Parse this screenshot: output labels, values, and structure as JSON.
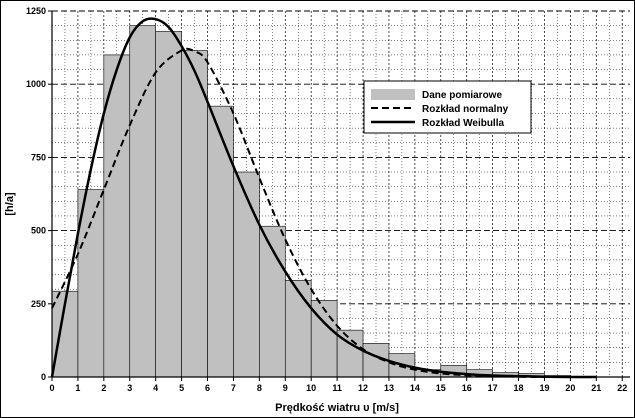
{
  "chart_data": {
    "type": "bar",
    "title": "",
    "xlabel": "Prędkość wiatru υ [m/s]",
    "ylabel": "[h/a]",
    "xlim": [
      0,
      22.3
    ],
    "ylim": [
      0,
      1250
    ],
    "x_ticks": [
      "0",
      "1",
      "2",
      "3",
      "4",
      "5",
      "6",
      "7",
      "8",
      "9",
      "10",
      "11",
      "12",
      "13",
      "14",
      "15",
      "16",
      "17",
      "18",
      "19",
      "20",
      "21",
      "22"
    ],
    "y_ticks": [
      "0",
      "250",
      "500",
      "750",
      "1000",
      "1250"
    ],
    "grid": true,
    "legend_position": "right",
    "series": [
      {
        "name": "Dane pomiarowe",
        "type": "bar",
        "color": "#c0c0c0",
        "bins": [
          {
            "from": 0,
            "to": 1,
            "value": 293
          },
          {
            "from": 1,
            "to": 2,
            "value": 640
          },
          {
            "from": 2,
            "to": 3,
            "value": 1100
          },
          {
            "from": 3,
            "to": 4,
            "value": 1200
          },
          {
            "from": 4,
            "to": 5,
            "value": 1180
          },
          {
            "from": 5,
            "to": 6,
            "value": 1115
          },
          {
            "from": 6,
            "to": 7,
            "value": 925
          },
          {
            "from": 7,
            "to": 8,
            "value": 700
          },
          {
            "from": 8,
            "to": 9,
            "value": 515
          },
          {
            "from": 9,
            "to": 10,
            "value": 330
          },
          {
            "from": 10,
            "to": 11,
            "value": 262
          },
          {
            "from": 11,
            "to": 12,
            "value": 160
          },
          {
            "from": 12,
            "to": 13,
            "value": 115
          },
          {
            "from": 13,
            "to": 14,
            "value": 80
          },
          {
            "from": 14,
            "to": 15,
            "value": 25
          },
          {
            "from": 15,
            "to": 16,
            "value": 40
          },
          {
            "from": 16,
            "to": 17,
            "value": 25
          },
          {
            "from": 17,
            "to": 18,
            "value": 15
          },
          {
            "from": 18,
            "to": 19,
            "value": 12
          },
          {
            "from": 19,
            "to": 20,
            "value": 5
          },
          {
            "from": 20,
            "to": 21,
            "value": 0
          },
          {
            "from": 21,
            "to": 22,
            "value": 0
          }
        ]
      },
      {
        "name": "Rozkład normalny",
        "type": "line",
        "style": "dashed",
        "color": "#000000",
        "x": [
          0,
          1,
          2,
          3,
          4,
          5,
          5.5,
          6,
          7,
          8,
          9,
          10,
          11,
          12,
          13,
          14,
          15,
          16,
          17,
          18,
          19,
          20
        ],
        "y": [
          235,
          420,
          640,
          860,
          1040,
          1115,
          1112,
          1075,
          900,
          680,
          470,
          300,
          175,
          95,
          50,
          25,
          12,
          6,
          3,
          1,
          0,
          0
        ]
      },
      {
        "name": "Rozkład Weibulla",
        "type": "line",
        "style": "solid",
        "color": "#000000",
        "x": [
          0,
          0.5,
          1,
          1.5,
          2,
          2.5,
          3,
          3.5,
          4,
          4.5,
          5,
          5.5,
          6,
          7,
          8,
          9,
          10,
          11,
          12,
          13,
          14,
          15,
          16,
          17,
          18,
          19,
          20,
          21
        ],
        "y": [
          0,
          250,
          490,
          710,
          900,
          1050,
          1160,
          1215,
          1222,
          1195,
          1130,
          1045,
          940,
          720,
          520,
          360,
          235,
          145,
          90,
          55,
          32,
          18,
          10,
          5,
          3,
          1,
          0,
          0
        ]
      }
    ]
  }
}
